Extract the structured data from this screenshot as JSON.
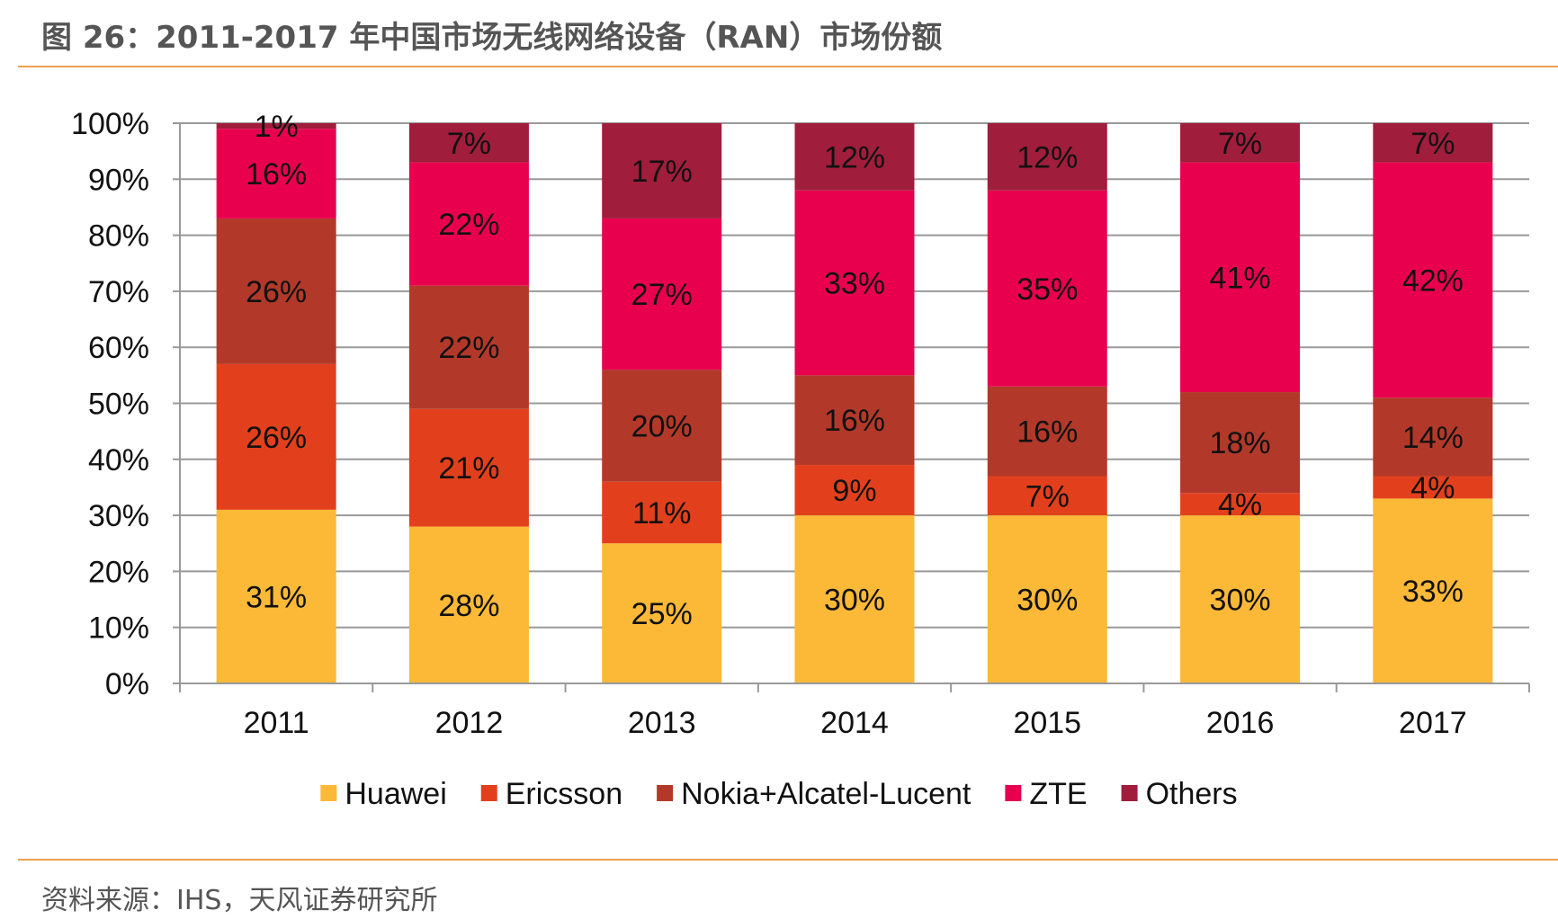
{
  "title": "图 26：2011-2017 年中国市场无线网络设备（RAN）市场份额",
  "source": "资料来源：IHS，天风证券研究所",
  "colors": {
    "Huawei": "#fbb937",
    "Ericsson": "#e2401c",
    "Nokia+Alcatel-Lucent": "#b2392a",
    "ZTE": "#e8004f",
    "Others": "#a01d3c",
    "grid": "#999999",
    "rule": "#f0a050"
  },
  "chart_data": {
    "type": "bar",
    "stacked": true,
    "percent": true,
    "categories": [
      "2011",
      "2012",
      "2013",
      "2014",
      "2015",
      "2016",
      "2017"
    ],
    "series": [
      {
        "name": "Huawei",
        "values": [
          31,
          28,
          25,
          30,
          30,
          30,
          33
        ],
        "labels": [
          "31%",
          "28%",
          "25%",
          "30%",
          "30%",
          "30%",
          "33%"
        ]
      },
      {
        "name": "Ericsson",
        "values": [
          26,
          21,
          11,
          9,
          7,
          4,
          4
        ],
        "labels": [
          "26%",
          "21%",
          "11%",
          "9%",
          "7%",
          "4%",
          "4%"
        ]
      },
      {
        "name": "Nokia+Alcatel-Lucent",
        "values": [
          26,
          22,
          20,
          16,
          16,
          18,
          14
        ],
        "labels": [
          "26%",
          "22%",
          "20%",
          "16%",
          "16%",
          "18%",
          "14%"
        ]
      },
      {
        "name": "ZTE",
        "values": [
          16,
          22,
          27,
          33,
          35,
          41,
          42
        ],
        "labels": [
          "16%",
          "22%",
          "27%",
          "33%",
          "35%",
          "41%",
          "42%"
        ]
      },
      {
        "name": "Others",
        "values": [
          1,
          7,
          17,
          12,
          12,
          7,
          7
        ],
        "labels": [
          "1%",
          "7%",
          "17%",
          "12%",
          "12%",
          "7%",
          "7%"
        ]
      }
    ],
    "yticks": [
      "0%",
      "10%",
      "20%",
      "30%",
      "40%",
      "50%",
      "60%",
      "70%",
      "80%",
      "90%",
      "100%"
    ],
    "ylim": [
      0,
      100
    ],
    "grid": true,
    "legend": "bottom"
  }
}
